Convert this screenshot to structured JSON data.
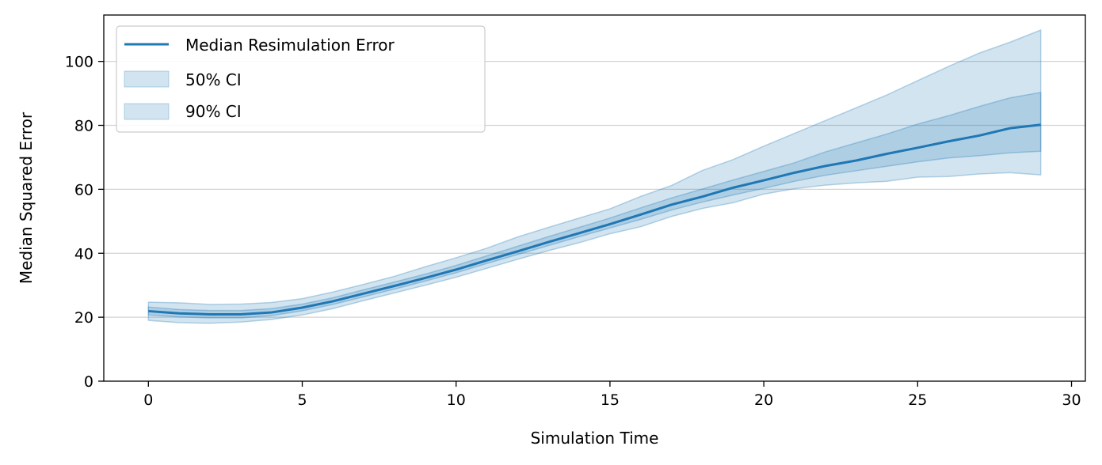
{
  "chart_data": {
    "type": "line",
    "title": "",
    "xlabel": "Simulation Time",
    "ylabel": "Median Squared Error",
    "xlim": [
      -1.45,
      30.45
    ],
    "ylim": [
      0,
      114.5
    ],
    "xticks": [
      0,
      5,
      10,
      15,
      20,
      25,
      30
    ],
    "yticks": [
      0,
      20,
      40,
      60,
      80,
      100
    ],
    "grid": "y",
    "legend_position": "top-left",
    "x": [
      0,
      1,
      2,
      3,
      4,
      5,
      6,
      7,
      8,
      9,
      10,
      11,
      12,
      13,
      14,
      15,
      16,
      17,
      18,
      19,
      20,
      21,
      22,
      23,
      24,
      25,
      26,
      27,
      28,
      29
    ],
    "series": [
      {
        "name": "Median Resimulation Error",
        "kind": "line",
        "color": "#1f77b4",
        "values": [
          21.9,
          21.2,
          20.9,
          20.9,
          21.5,
          23.0,
          25.0,
          27.4,
          29.8,
          32.3,
          34.9,
          37.8,
          40.6,
          43.5,
          46.3,
          49.1,
          52.1,
          55.2,
          57.7,
          60.5,
          62.8,
          65.2,
          67.3,
          69.0,
          71.1,
          73.0,
          75.0,
          76.8,
          79.1,
          80.2
        ]
      },
      {
        "name": "50% CI",
        "kind": "band",
        "color": "#1f77b4",
        "lower": [
          20.7,
          20.1,
          19.8,
          19.8,
          20.5,
          22.0,
          24.0,
          26.4,
          28.8,
          31.3,
          33.9,
          36.8,
          39.6,
          42.4,
          45.2,
          47.9,
          50.6,
          53.5,
          56.0,
          58.2,
          60.3,
          62.5,
          64.4,
          65.8,
          67.2,
          68.6,
          69.8,
          70.5,
          71.4,
          71.9
        ],
        "upper": [
          23.2,
          22.4,
          22.1,
          22.1,
          22.7,
          24.1,
          26.1,
          28.6,
          31.0,
          33.5,
          36.2,
          39.2,
          42.2,
          45.2,
          48.1,
          51.0,
          54.2,
          57.3,
          60.1,
          62.9,
          65.6,
          68.3,
          71.7,
          74.5,
          77.3,
          80.4,
          83.0,
          85.9,
          88.6,
          90.3
        ]
      },
      {
        "name": "90% CI",
        "kind": "band",
        "color": "#1f77b4",
        "lower": [
          19.0,
          18.3,
          18.1,
          18.5,
          19.3,
          20.7,
          22.7,
          25.2,
          27.6,
          30.0,
          32.5,
          35.3,
          38.1,
          40.8,
          43.3,
          46.1,
          48.3,
          51.5,
          54.0,
          55.8,
          58.5,
          60.2,
          61.3,
          62.0,
          62.5,
          63.8,
          64.0,
          64.8,
          65.2,
          64.5
        ],
        "upper": [
          24.7,
          24.5,
          24.0,
          24.1,
          24.6,
          25.8,
          27.9,
          30.3,
          32.8,
          35.8,
          38.6,
          41.6,
          45.1,
          48.1,
          51.0,
          53.9,
          57.8,
          61.2,
          65.9,
          69.3,
          73.5,
          77.5,
          81.5,
          85.5,
          89.5,
          94.0,
          98.4,
          102.6,
          106.0,
          109.8
        ]
      }
    ]
  }
}
